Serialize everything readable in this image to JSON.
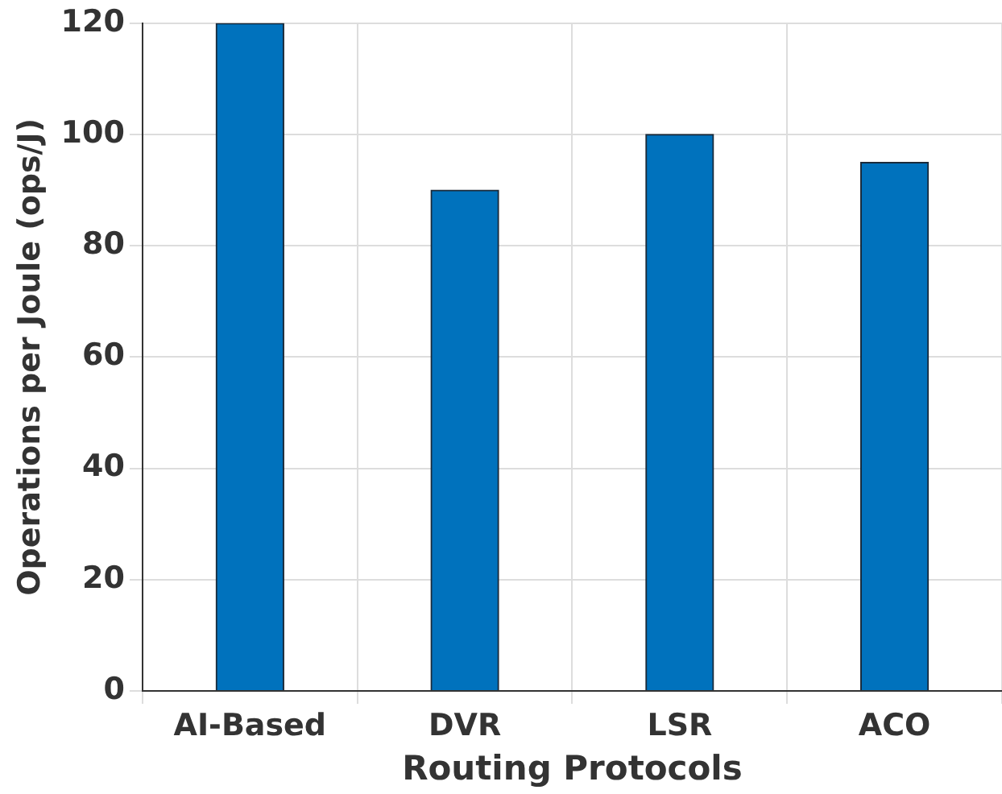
{
  "chart_data": {
    "type": "bar",
    "xlabel": "Routing Protocols",
    "ylabel": "Operations per Joule (ops/J)",
    "categories": [
      "AI-Based",
      "DVR",
      "LSR",
      "ACO"
    ],
    "values": [
      120,
      90,
      100,
      95
    ],
    "color": "#0072bd",
    "ylim": [
      0,
      120
    ],
    "yticks": [
      0,
      20,
      40,
      60,
      80,
      100,
      120
    ],
    "grid": true,
    "legend": false
  }
}
